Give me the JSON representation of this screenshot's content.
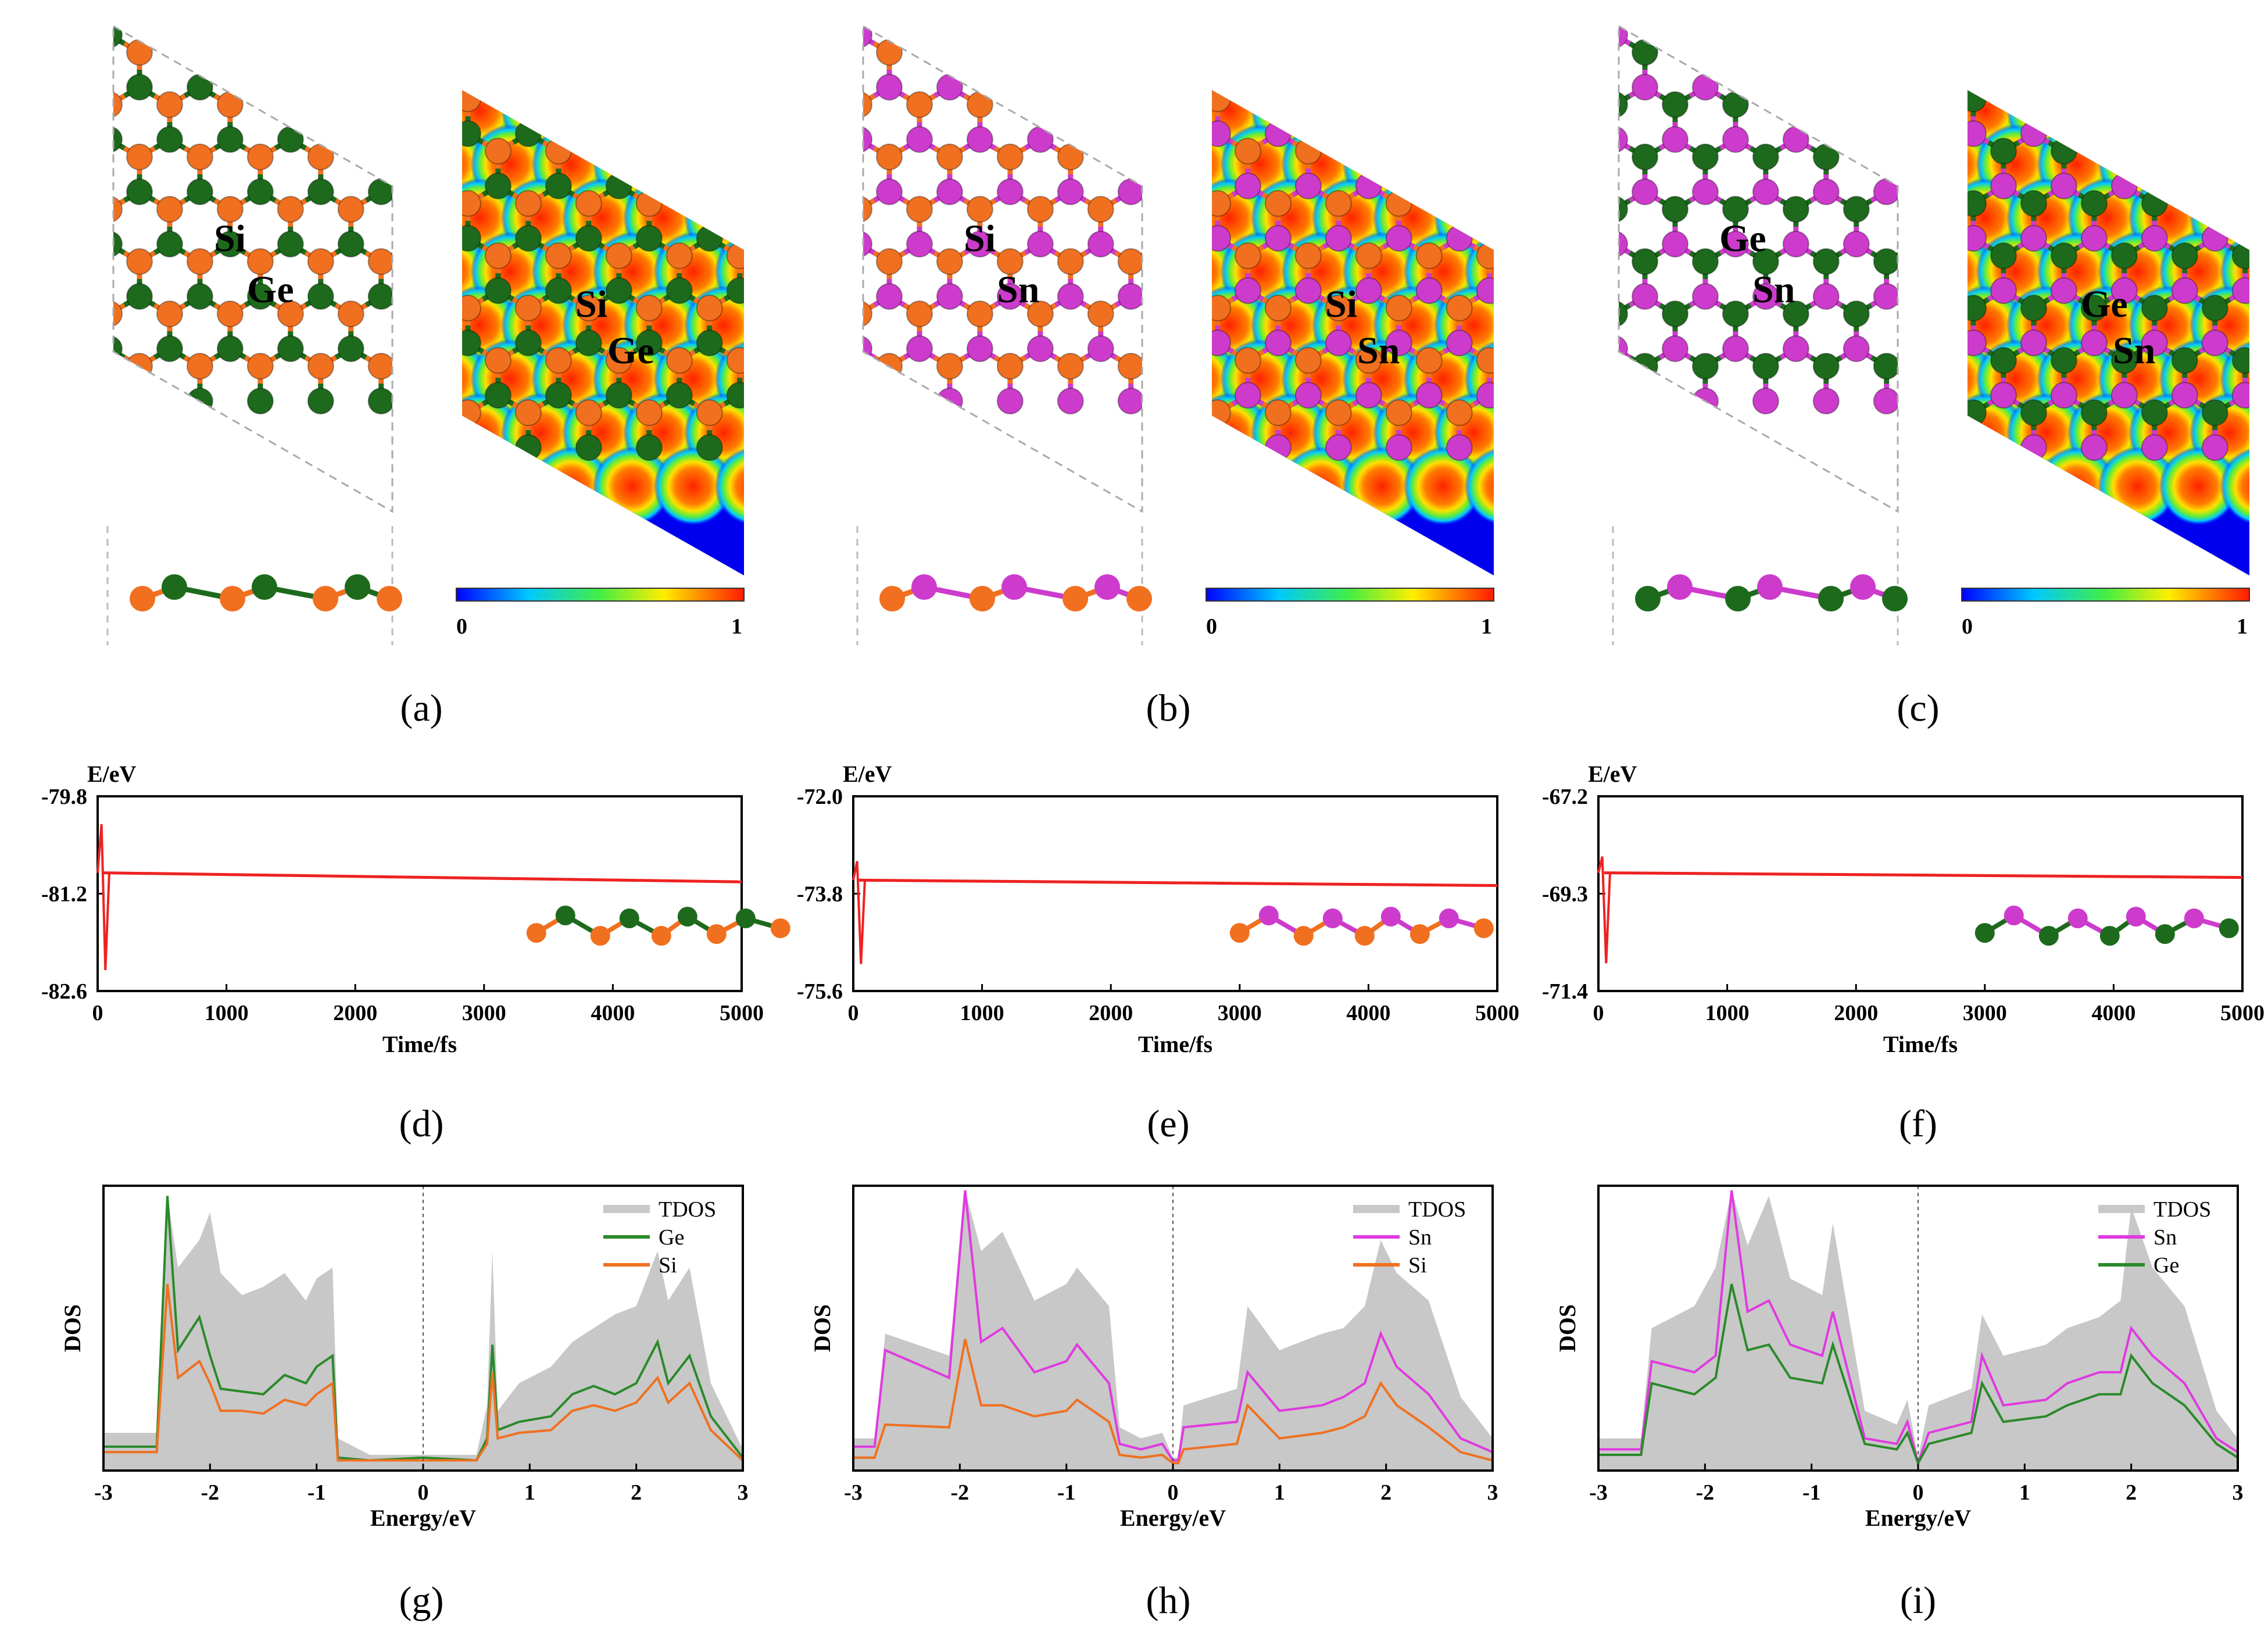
{
  "colors": {
    "Si": "#f07020",
    "Ge": "#1d6a1d",
    "Sn": "#cc3bcc",
    "TDOS": "#c8c8c8",
    "md_line": "#ee2222",
    "bond_ge": "#2e7d2e"
  },
  "captions": [
    "(a)",
    "(b)",
    "(c)",
    "(d)",
    "(e)",
    "(f)",
    "(g)",
    "(h)",
    "(i)"
  ],
  "structures": [
    {
      "panel": "(a)",
      "atomA": "Si",
      "atomB": "Ge",
      "colorbar_min": "0",
      "colorbar_max": "1"
    },
    {
      "panel": "(b)",
      "atomA": "Si",
      "atomB": "Sn",
      "colorbar_min": "0",
      "colorbar_max": "1"
    },
    {
      "panel": "(c)",
      "atomA": "Ge",
      "atomB": "Sn",
      "colorbar_min": "0",
      "colorbar_max": "1"
    }
  ],
  "chart_data": [
    {
      "panel": "(d)",
      "type": "line",
      "ylabel": "E/eV",
      "xlabel": "Time/fs",
      "xlim": [
        0,
        5000
      ],
      "ylim": [
        -82.6,
        -79.8
      ],
      "yticks": [
        "-79.8",
        "-81.2",
        "-82.6"
      ],
      "xticks": [
        "0",
        "1000",
        "2000",
        "3000",
        "4000",
        "5000"
      ],
      "x": [
        0,
        5000
      ],
      "y": [
        -80.9,
        -81.03
      ],
      "spike": {
        "x": 60,
        "min": -82.3,
        "max": -80.2
      },
      "inset": [
        "Si",
        "Ge"
      ]
    },
    {
      "panel": "(e)",
      "type": "line",
      "ylabel": "E/eV",
      "xlabel": "Time/fs",
      "xlim": [
        0,
        5000
      ],
      "ylim": [
        -75.6,
        -72.0
      ],
      "yticks": [
        "-72.0",
        "-73.8",
        "-75.6"
      ],
      "xticks": [
        "0",
        "1000",
        "2000",
        "3000",
        "4000",
        "5000"
      ],
      "x": [
        0,
        5000
      ],
      "y": [
        -73.55,
        -73.65
      ],
      "spike": {
        "x": 60,
        "min": -75.1,
        "max": -73.2
      },
      "inset": [
        "Si",
        "Sn"
      ]
    },
    {
      "panel": "(f)",
      "type": "line",
      "ylabel": "E/eV",
      "xlabel": "Time/fs",
      "xlim": [
        0,
        5000
      ],
      "ylim": [
        -71.4,
        -67.2
      ],
      "yticks": [
        "-67.2",
        "-69.3",
        "-71.4"
      ],
      "xticks": [
        "0",
        "1000",
        "2000",
        "3000",
        "4000",
        "5000"
      ],
      "x": [
        0,
        5000
      ],
      "y": [
        -68.85,
        -68.95
      ],
      "spike": {
        "x": 60,
        "min": -70.8,
        "max": -68.5
      },
      "inset": [
        "Ge",
        "Sn"
      ]
    },
    {
      "panel": "(g)",
      "type": "area",
      "ylabel": "DOS",
      "xlabel": "Energy/eV",
      "xlim": [
        -3,
        3
      ],
      "xticks": [
        "-3",
        "-2",
        "-1",
        "0",
        "1",
        "2",
        "3"
      ],
      "series": [
        {
          "name": "TDOS",
          "x": [
            -3,
            -2.5,
            -2.4,
            -2.3,
            -2.1,
            -2.0,
            -1.9,
            -1.7,
            -1.5,
            -1.3,
            -1.1,
            -1.0,
            -0.85,
            -0.8,
            -0.5,
            0,
            0.5,
            0.6,
            0.65,
            0.7,
            0.9,
            1.2,
            1.4,
            1.6,
            1.8,
            2.0,
            2.2,
            2.3,
            2.5,
            2.7,
            3.0
          ],
          "y": [
            0.12,
            0.12,
            0.98,
            0.72,
            0.82,
            0.92,
            0.7,
            0.62,
            0.65,
            0.7,
            0.6,
            0.68,
            0.72,
            0.1,
            0.04,
            0.04,
            0.04,
            0.22,
            0.78,
            0.2,
            0.3,
            0.36,
            0.45,
            0.5,
            0.55,
            0.58,
            0.78,
            0.6,
            0.72,
            0.3,
            0.06
          ]
        },
        {
          "name": "Ge",
          "x": [
            -3,
            -2.5,
            -2.4,
            -2.3,
            -2.1,
            -2.0,
            -1.9,
            -1.7,
            -1.5,
            -1.3,
            -1.1,
            -1.0,
            -0.85,
            -0.8,
            -0.5,
            0,
            0.5,
            0.6,
            0.65,
            0.7,
            0.9,
            1.2,
            1.4,
            1.6,
            1.8,
            2.0,
            2.2,
            2.3,
            2.5,
            2.7,
            3.0
          ],
          "y": [
            0.07,
            0.07,
            0.98,
            0.42,
            0.54,
            0.4,
            0.28,
            0.27,
            0.26,
            0.33,
            0.3,
            0.36,
            0.4,
            0.03,
            0.02,
            0.03,
            0.02,
            0.1,
            0.44,
            0.13,
            0.16,
            0.18,
            0.26,
            0.29,
            0.26,
            0.3,
            0.45,
            0.3,
            0.4,
            0.18,
            0.03
          ]
        },
        {
          "name": "Si",
          "x": [
            -3,
            -2.5,
            -2.4,
            -2.3,
            -2.1,
            -2.0,
            -1.9,
            -1.7,
            -1.5,
            -1.3,
            -1.1,
            -1.0,
            -0.85,
            -0.8,
            -0.5,
            0,
            0.5,
            0.6,
            0.65,
            0.7,
            0.9,
            1.2,
            1.4,
            1.6,
            1.8,
            2.0,
            2.2,
            2.3,
            2.5,
            2.7,
            3.0
          ],
          "y": [
            0.05,
            0.05,
            0.66,
            0.32,
            0.38,
            0.3,
            0.2,
            0.2,
            0.19,
            0.24,
            0.22,
            0.26,
            0.3,
            0.02,
            0.02,
            0.02,
            0.02,
            0.08,
            0.34,
            0.1,
            0.12,
            0.13,
            0.2,
            0.22,
            0.2,
            0.23,
            0.32,
            0.23,
            0.3,
            0.13,
            0.02
          ]
        }
      ]
    },
    {
      "panel": "(h)",
      "type": "area",
      "ylabel": "DOS",
      "xlabel": "Energy/eV",
      "xlim": [
        -3,
        3
      ],
      "xticks": [
        "-3",
        "-2",
        "-1",
        "0",
        "1",
        "2",
        "3"
      ],
      "series": [
        {
          "name": "TDOS",
          "x": [
            -3,
            -2.8,
            -2.7,
            -2.1,
            -1.95,
            -1.8,
            -1.6,
            -1.3,
            -1.0,
            -0.9,
            -0.6,
            -0.5,
            -0.3,
            -0.1,
            0,
            0.05,
            0.1,
            0.6,
            0.7,
            1.0,
            1.4,
            1.6,
            1.8,
            1.95,
            2.1,
            2.4,
            2.7,
            3.0
          ],
          "y": [
            0.1,
            0.1,
            0.48,
            0.4,
            1.0,
            0.78,
            0.85,
            0.6,
            0.66,
            0.72,
            0.58,
            0.14,
            0.1,
            0.12,
            0.03,
            0.03,
            0.22,
            0.28,
            0.58,
            0.42,
            0.48,
            0.5,
            0.58,
            0.82,
            0.7,
            0.6,
            0.25,
            0.1
          ]
        },
        {
          "name": "Sn",
          "x": [
            -3,
            -2.8,
            -2.7,
            -2.1,
            -1.95,
            -1.8,
            -1.6,
            -1.3,
            -1.0,
            -0.9,
            -0.6,
            -0.5,
            -0.3,
            -0.1,
            0,
            0.05,
            0.1,
            0.6,
            0.7,
            1.0,
            1.4,
            1.6,
            1.8,
            1.95,
            2.1,
            2.4,
            2.7,
            3.0
          ],
          "y": [
            0.07,
            0.07,
            0.42,
            0.32,
            1.0,
            0.45,
            0.5,
            0.34,
            0.38,
            0.44,
            0.3,
            0.08,
            0.06,
            0.08,
            0.02,
            0.02,
            0.14,
            0.16,
            0.34,
            0.2,
            0.22,
            0.25,
            0.3,
            0.48,
            0.36,
            0.26,
            0.1,
            0.05
          ]
        },
        {
          "name": "Si",
          "x": [
            -3,
            -2.8,
            -2.7,
            -2.1,
            -1.95,
            -1.8,
            -1.6,
            -1.3,
            -1.0,
            -0.9,
            -0.6,
            -0.5,
            -0.3,
            -0.1,
            0,
            0.05,
            0.1,
            0.6,
            0.7,
            1.0,
            1.4,
            1.6,
            1.8,
            1.95,
            2.1,
            2.4,
            2.7,
            3.0
          ],
          "y": [
            0.03,
            0.03,
            0.15,
            0.14,
            0.46,
            0.22,
            0.22,
            0.18,
            0.2,
            0.24,
            0.16,
            0.04,
            0.03,
            0.04,
            0.01,
            0.01,
            0.06,
            0.08,
            0.22,
            0.1,
            0.12,
            0.14,
            0.18,
            0.3,
            0.22,
            0.14,
            0.05,
            0.02
          ]
        }
      ]
    },
    {
      "panel": "(i)",
      "type": "area",
      "ylabel": "DOS",
      "xlabel": "Energy/eV",
      "xlim": [
        -3,
        3
      ],
      "xticks": [
        "-3",
        "-2",
        "-1",
        "0",
        "1",
        "2",
        "3"
      ],
      "series": [
        {
          "name": "TDOS",
          "x": [
            -3,
            -2.6,
            -2.5,
            -2.1,
            -1.9,
            -1.75,
            -1.6,
            -1.4,
            -1.2,
            -0.9,
            -0.8,
            -0.5,
            -0.2,
            -0.1,
            0,
            0.1,
            0.5,
            0.6,
            0.8,
            1.2,
            1.4,
            1.7,
            1.9,
            2.0,
            2.2,
            2.5,
            2.8,
            3.0
          ],
          "y": [
            0.1,
            0.1,
            0.5,
            0.58,
            0.72,
            1.0,
            0.8,
            0.98,
            0.68,
            0.62,
            0.88,
            0.2,
            0.15,
            0.24,
            0.03,
            0.22,
            0.28,
            0.55,
            0.4,
            0.44,
            0.5,
            0.54,
            0.6,
            0.94,
            0.72,
            0.58,
            0.2,
            0.1
          ]
        },
        {
          "name": "Sn",
          "x": [
            -3,
            -2.6,
            -2.5,
            -2.1,
            -1.9,
            -1.75,
            -1.6,
            -1.4,
            -1.2,
            -0.9,
            -0.8,
            -0.5,
            -0.2,
            -0.1,
            0,
            0.1,
            0.5,
            0.6,
            0.8,
            1.2,
            1.4,
            1.7,
            1.9,
            2.0,
            2.2,
            2.5,
            2.8,
            3.0
          ],
          "y": [
            0.06,
            0.06,
            0.38,
            0.34,
            0.4,
            1.0,
            0.56,
            0.6,
            0.44,
            0.4,
            0.56,
            0.1,
            0.08,
            0.16,
            0.01,
            0.12,
            0.16,
            0.4,
            0.22,
            0.24,
            0.3,
            0.34,
            0.34,
            0.5,
            0.4,
            0.3,
            0.1,
            0.05
          ]
        },
        {
          "name": "Ge",
          "x": [
            -3,
            -2.6,
            -2.5,
            -2.1,
            -1.9,
            -1.75,
            -1.6,
            -1.4,
            -1.2,
            -0.9,
            -0.8,
            -0.5,
            -0.2,
            -0.1,
            0,
            0.1,
            0.5,
            0.6,
            0.8,
            1.2,
            1.4,
            1.7,
            1.9,
            2.0,
            2.2,
            2.5,
            2.8,
            3.0
          ],
          "y": [
            0.04,
            0.04,
            0.3,
            0.26,
            0.32,
            0.66,
            0.42,
            0.44,
            0.32,
            0.3,
            0.44,
            0.08,
            0.06,
            0.12,
            0.01,
            0.08,
            0.12,
            0.3,
            0.16,
            0.18,
            0.22,
            0.26,
            0.26,
            0.4,
            0.3,
            0.22,
            0.08,
            0.03
          ]
        }
      ]
    }
  ]
}
